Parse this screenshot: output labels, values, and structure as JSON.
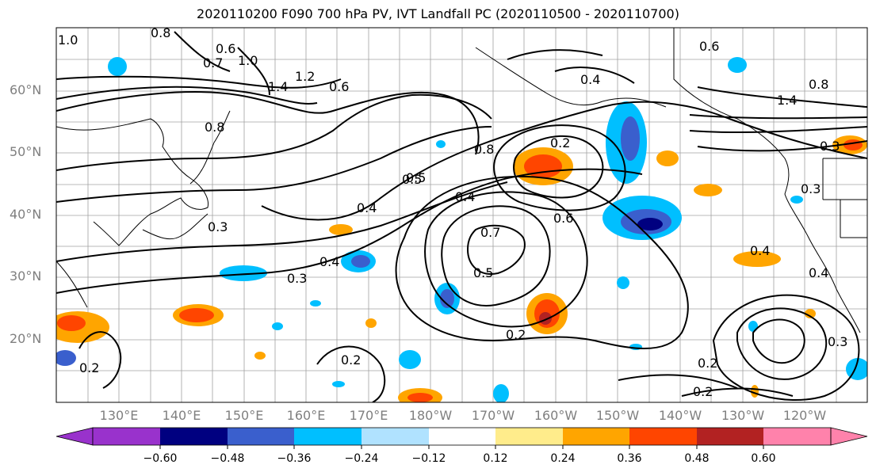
{
  "title": "2020110200 F090 700 hPa PV, IVT Landfall PC (2020110500 - 2020110700)",
  "lat_labels": [
    "60°N",
    "50°N",
    "40°N",
    "30°N",
    "20°N"
  ],
  "lon_labels": [
    "130°E",
    "140°E",
    "150°E",
    "160°E",
    "170°E",
    "180°W",
    "170°W",
    "160°W",
    "150°W",
    "140°W",
    "130°W",
    "120°W"
  ],
  "colorbar": {
    "ticks": [
      "−0.60",
      "−0.48",
      "−0.36",
      "−0.24",
      "−0.12",
      "0.12",
      "0.24",
      "0.36",
      "0.48",
      "0.60"
    ],
    "colors": [
      "#9932cc",
      "#000080",
      "#3a5fcd",
      "#00bfff",
      "#b0e2ff",
      "#ffffff",
      "#ffec8b",
      "#ffa500",
      "#ff4500",
      "#b22222",
      "#ff82ab"
    ]
  },
  "contour_labels": [
    "1.0",
    "0.8",
    "0.6",
    "0.7",
    "1.0",
    "1.4",
    "1.2",
    "0.6",
    "0.8",
    "0.5",
    "0.4",
    "0.3",
    "0.3",
    "0.4",
    "0.8",
    "0.2",
    "0.4",
    "0.7",
    "0.6",
    "0.5",
    "0.2",
    "0.4",
    "0.2",
    "0.2",
    "0.6",
    "0.8",
    "1.4",
    "0.3",
    "0.3",
    "0.4",
    "0.4",
    "0.2",
    "0.2",
    "0.5",
    "0.3"
  ]
}
